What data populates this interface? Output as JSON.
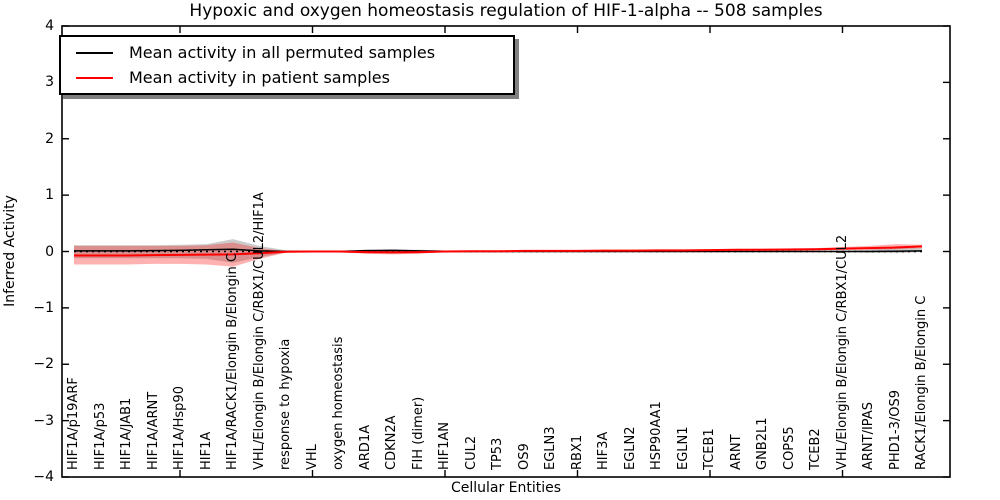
{
  "title": "Hypoxic and oxygen homeostasis regulation of HIF-1-alpha -- 508 samples",
  "chart_data": {
    "type": "line",
    "title": "Hypoxic and oxygen homeostasis regulation of HIF-1-alpha -- 508 samples",
    "xlabel": "Cellular Entities",
    "ylabel": "Inferred Activity",
    "ylim": [
      -4,
      4
    ],
    "yticks": [
      -4,
      -3,
      -2,
      -1,
      0,
      1,
      2,
      3,
      4
    ],
    "xtick_positions": [
      5,
      10,
      15,
      20,
      25,
      30
    ],
    "grid": false,
    "legend_position": "upper left",
    "background": "#ffffff",
    "zero_line": {
      "y": 0,
      "style": "dotted",
      "color": "#000000"
    },
    "categories": [
      "HIF1A/p19ARF",
      "HIF1A/p53",
      "HIF1A/JAB1",
      "HIF1A/ARNT",
      "HIF1A/Hsp90",
      "HIF1A",
      "HIF1A/RACK1/Elongin B/Elongin C",
      "VHL/Elongin B/Elongin C/RBX1/CUL2/HIF1A",
      "response to hypoxia",
      "VHL",
      "oxygen homeostasis",
      "ARD1A",
      "CDKN2A",
      "FIH (dimer)",
      "HIF1AN",
      "CUL2",
      "TP53",
      "OS9",
      "EGLN3",
      "RBX1",
      "HIF3A",
      "EGLN2",
      "HSP90AA1",
      "EGLN1",
      "TCEB1",
      "ARNT",
      "GNB2L1",
      "COPS5",
      "TCEB2",
      "VHL/Elongin B/Elongin C/RBX1/CUL2",
      "ARNT/IPAS",
      "PHD1-3/OS9",
      "RACK1/Elongin B/Elongin C"
    ],
    "series": [
      {
        "name": "Mean activity in all permuted samples",
        "color": "#000000",
        "width": 1.5,
        "values": [
          0.01,
          0.01,
          0.01,
          0.015,
          0.02,
          0.03,
          0.04,
          0.01,
          0.0,
          0.0,
          0.0,
          0.015,
          0.02,
          0.01,
          0.005,
          0.0,
          0.0,
          0.0,
          0.0,
          0.0,
          0.0,
          0.0,
          0.0,
          0.0,
          0.0,
          0.0,
          0.0,
          0.0,
          0.0,
          0.0,
          0.0,
          0.005,
          0.01
        ]
      },
      {
        "name": "Mean activity in patient samples",
        "color": "#ff0000",
        "width": 2,
        "values": [
          -0.07,
          -0.07,
          -0.07,
          -0.065,
          -0.06,
          -0.055,
          -0.05,
          -0.03,
          -0.005,
          0.0,
          0.0,
          -0.01,
          -0.015,
          -0.01,
          0.0,
          0.005,
          0.005,
          0.01,
          0.01,
          0.01,
          0.015,
          0.015,
          0.02,
          0.02,
          0.025,
          0.03,
          0.03,
          0.035,
          0.04,
          0.05,
          0.06,
          0.07,
          0.09
        ]
      }
    ],
    "bands": [
      {
        "name": "permuted-samples-std-band",
        "color": "rgba(128,128,128,0.40)",
        "upper": [
          0.11,
          0.11,
          0.11,
          0.11,
          0.12,
          0.13,
          0.22,
          0.1,
          0.02,
          0.015,
          0.015,
          0.03,
          0.04,
          0.03,
          0.015,
          0.01,
          0.01,
          0.01,
          0.01,
          0.01,
          0.01,
          0.01,
          0.01,
          0.01,
          0.01,
          0.01,
          0.01,
          0.01,
          0.01,
          0.015,
          0.03,
          0.09,
          0.06
        ],
        "lower": [
          -0.12,
          -0.12,
          -0.12,
          -0.12,
          -0.12,
          -0.13,
          -0.2,
          -0.1,
          -0.02,
          -0.015,
          -0.015,
          -0.03,
          -0.04,
          -0.03,
          -0.015,
          -0.01,
          -0.01,
          -0.01,
          -0.01,
          -0.01,
          -0.01,
          -0.01,
          -0.01,
          -0.01,
          -0.01,
          -0.01,
          -0.01,
          -0.01,
          -0.01,
          -0.01,
          -0.02,
          -0.03,
          -0.01
        ]
      },
      {
        "name": "patient-samples-std-band",
        "color": "rgba(255,0,0,0.30)",
        "upper": [
          0.1,
          0.1,
          0.1,
          0.1,
          0.1,
          0.11,
          0.16,
          0.06,
          0.01,
          0.01,
          0.01,
          0.02,
          0.03,
          0.02,
          0.01,
          0.015,
          0.015,
          0.02,
          0.02,
          0.02,
          0.025,
          0.03,
          0.03,
          0.035,
          0.04,
          0.045,
          0.05,
          0.055,
          0.06,
          0.08,
          0.1,
          0.13,
          0.12
        ],
        "lower": [
          -0.23,
          -0.23,
          -0.23,
          -0.22,
          -0.22,
          -0.23,
          -0.27,
          -0.13,
          -0.02,
          -0.01,
          -0.01,
          -0.04,
          -0.05,
          -0.04,
          -0.01,
          -0.005,
          -0.005,
          0.0,
          0.0,
          0.0,
          0.005,
          0.005,
          0.01,
          0.01,
          0.01,
          0.015,
          0.015,
          0.02,
          0.02,
          0.025,
          0.03,
          0.04,
          0.06
        ]
      }
    ]
  }
}
